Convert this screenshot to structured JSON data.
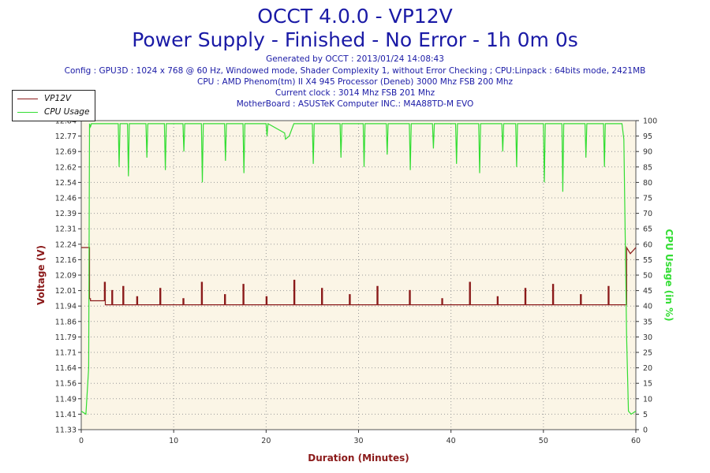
{
  "title_line1": "OCCT 4.0.0 - VP12V",
  "title_line2": "Power Supply - Finished - No Error - 1h 0m 0s",
  "info": [
    "Generated by OCCT : 2013/01/24 14:08:43",
    "Config : GPU3D : 1024 x 768 @ 60 Hz, Windowed mode, Shader Complexity 1, without Error Checking ; CPU:Linpack : 64bits mode, 2421MB",
    "CPU : AMD Phenom(tm) II X4 945 Processor (Deneb) 3000 Mhz FSB 200 Mhz",
    "Current clock : 3014 Mhz FSB 201 Mhz",
    "MotherBoard : ASUSTeK Computer INC.: M4A88TD-M EVO"
  ],
  "colors": {
    "title": "#1a1aa6",
    "voltage": "#8b1a1a",
    "cpu": "#33dd33",
    "plot_bg": "#fbf5e6"
  },
  "chart_data": {
    "type": "line",
    "xlabel": "Duration (Minutes)",
    "ylabel_left": "Voltage (V)",
    "ylabel_right": "CPU Usage (in %)",
    "xlim": [
      0,
      60
    ],
    "x_ticks": [
      0,
      10,
      20,
      30,
      40,
      50,
      60
    ],
    "ylim_left": [
      11.33,
      12.84
    ],
    "y_ticks_left": [
      "11.33",
      "11.41",
      "11.49",
      "11.56",
      "11.64",
      "11.71",
      "11.79",
      "11.86",
      "11.94",
      "12.01",
      "12.09",
      "12.16",
      "12.24",
      "12.31",
      "12.39",
      "12.46",
      "12.54",
      "12.62",
      "12.69",
      "12.77",
      "12.84"
    ],
    "ylim_right": [
      0,
      100
    ],
    "y_ticks_right": [
      0,
      5,
      10,
      15,
      20,
      25,
      30,
      35,
      40,
      45,
      50,
      55,
      60,
      65,
      70,
      75,
      80,
      85,
      90,
      95,
      100
    ],
    "grid": true,
    "legend_position": "top-left",
    "series": [
      {
        "name": "VP12V",
        "axis": "left",
        "x": [
          0,
          0.9,
          0.9,
          1.0,
          1.0,
          2.5,
          2.5,
          2.6,
          2.6,
          3.0,
          3.3,
          3.3,
          3.4,
          3.4,
          4.5,
          4.5,
          4.6,
          4.6,
          6.0,
          6.0,
          6.1,
          6.1,
          8.5,
          8.5,
          8.6,
          8.6,
          11.0,
          11.0,
          11.1,
          11.1,
          13.0,
          13.0,
          13.1,
          13.1,
          15.5,
          15.5,
          15.6,
          15.6,
          17.5,
          17.5,
          17.6,
          17.6,
          20.0,
          20.0,
          20.1,
          20.1,
          23.0,
          23.0,
          23.1,
          23.1,
          26.0,
          26.0,
          26.1,
          26.1,
          29.0,
          29.0,
          29.1,
          29.1,
          32.0,
          32.0,
          32.1,
          32.1,
          35.5,
          35.5,
          35.6,
          35.6,
          39.0,
          39.0,
          39.1,
          39.1,
          42.0,
          42.0,
          42.1,
          42.1,
          45.0,
          45.0,
          45.1,
          45.1,
          48.0,
          48.0,
          48.1,
          48.1,
          51.0,
          51.0,
          51.1,
          51.1,
          54.0,
          54.0,
          54.1,
          54.1,
          57.0,
          57.0,
          57.1,
          57.1,
          59.0,
          59.0,
          59.4,
          60
        ],
        "y": [
          12.22,
          12.22,
          11.97,
          11.97,
          11.96,
          11.96,
          12.05,
          12.05,
          11.94,
          11.94,
          11.94,
          12.01,
          12.01,
          11.94,
          11.94,
          12.03,
          12.03,
          11.94,
          11.94,
          11.98,
          11.98,
          11.94,
          11.94,
          12.02,
          12.02,
          11.94,
          11.94,
          11.97,
          11.97,
          11.94,
          11.94,
          12.05,
          12.05,
          11.94,
          11.94,
          11.99,
          11.99,
          11.94,
          11.94,
          12.04,
          12.04,
          11.94,
          11.94,
          11.98,
          11.98,
          11.94,
          11.94,
          12.06,
          12.06,
          11.94,
          11.94,
          12.02,
          12.02,
          11.94,
          11.94,
          11.99,
          11.99,
          11.94,
          11.94,
          12.03,
          12.03,
          11.94,
          11.94,
          12.01,
          12.01,
          11.94,
          11.94,
          11.97,
          11.97,
          11.94,
          11.94,
          12.05,
          12.05,
          11.94,
          11.94,
          11.98,
          11.98,
          11.94,
          11.94,
          12.02,
          12.02,
          11.94,
          11.94,
          12.04,
          12.04,
          11.94,
          11.94,
          11.99,
          11.99,
          11.94,
          11.94,
          12.03,
          12.03,
          11.94,
          11.94,
          12.22,
          12.19,
          12.22
        ]
      },
      {
        "name": "CPU Usage",
        "axis": "right",
        "x": [
          0,
          0.5,
          0.8,
          0.9,
          1.0,
          1.1,
          2.0,
          4.0,
          4.1,
          4.2,
          5.0,
          5.1,
          5.2,
          7.0,
          7.1,
          7.2,
          9.0,
          9.1,
          9.2,
          11.0,
          11.1,
          11.2,
          13.0,
          13.1,
          13.2,
          15.5,
          15.6,
          15.7,
          17.5,
          17.6,
          17.7,
          20.0,
          20.1,
          20.2,
          22.0,
          22.1,
          22.5,
          23.0,
          23.1,
          25.0,
          25.1,
          25.2,
          28.0,
          28.1,
          28.2,
          30.5,
          30.6,
          30.7,
          33.0,
          33.1,
          33.2,
          35.5,
          35.6,
          35.7,
          38.0,
          38.1,
          38.2,
          40.5,
          40.6,
          40.7,
          43.0,
          43.1,
          43.2,
          45.5,
          45.6,
          45.7,
          47.0,
          47.1,
          47.2,
          50.0,
          50.1,
          50.2,
          52.0,
          52.1,
          52.2,
          54.5,
          54.6,
          54.7,
          56.5,
          56.6,
          56.7,
          58.5,
          58.7,
          59.0,
          59.2,
          59.5,
          60
        ],
        "y": [
          6,
          5,
          20,
          99,
          98,
          99,
          99,
          99,
          85,
          99,
          99,
          82,
          99,
          99,
          88,
          99,
          99,
          84,
          99,
          99,
          90,
          99,
          99,
          80,
          99,
          99,
          87,
          99,
          99,
          83,
          99,
          99,
          95,
          99,
          96,
          94,
          95,
          99,
          99,
          99,
          86,
          99,
          99,
          88,
          99,
          99,
          85,
          99,
          99,
          89,
          99,
          99,
          84,
          99,
          99,
          91,
          99,
          99,
          86,
          99,
          99,
          83,
          99,
          99,
          90,
          99,
          99,
          85,
          99,
          99,
          80,
          99,
          99,
          77,
          99,
          99,
          88,
          99,
          99,
          85,
          99,
          99,
          94,
          30,
          6,
          5,
          6
        ]
      }
    ]
  }
}
